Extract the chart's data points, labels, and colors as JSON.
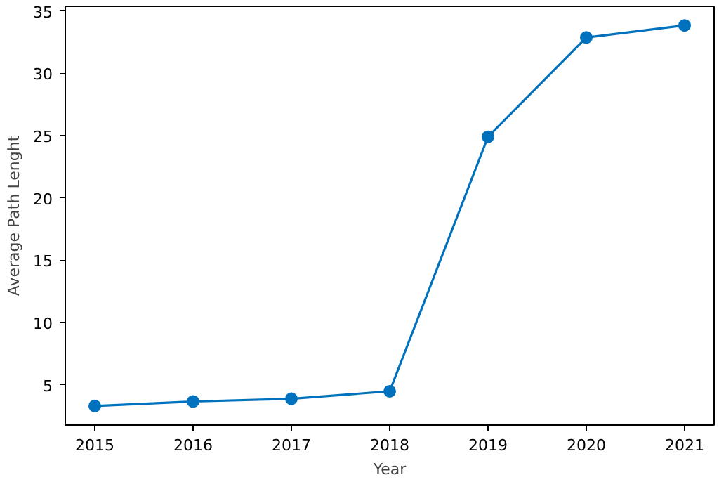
{
  "chart_data": {
    "type": "line",
    "xlabel": "Year",
    "ylabel": "Average Path Lenght",
    "x": [
      2015,
      2016,
      2017,
      2018,
      2019,
      2020,
      2021
    ],
    "series": [
      {
        "color": "#0072bd",
        "values": [
          3.3,
          3.66,
          3.88,
          4.48,
          24.9,
          32.87,
          33.84
        ]
      }
    ],
    "xlim": [
      2014.7,
      2021.3
    ],
    "xticks": [
      2015,
      2016,
      2017,
      2018,
      2019,
      2020,
      2021
    ],
    "ylim": [
      1.77,
      35.37
    ],
    "yticks": [
      5,
      10,
      15,
      20,
      25,
      30,
      35
    ],
    "grid": false,
    "marker": "circle",
    "line_style": "solid"
  }
}
